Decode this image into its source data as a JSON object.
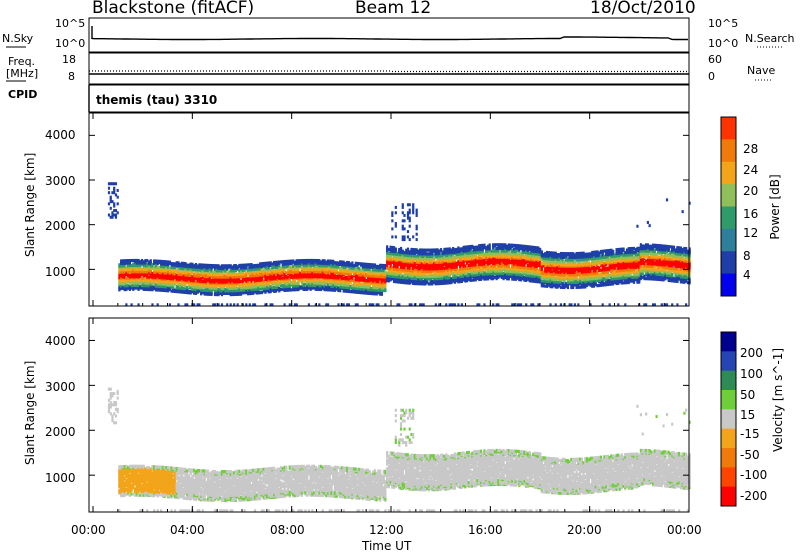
{
  "header": {
    "title": "Blackstone (fitACF)",
    "beam": "Beam 12",
    "date": "18/Oct/2010"
  },
  "strip_labels": {
    "nsky": "N.Sky",
    "nsearch": "N.Search",
    "freq": "Freq.",
    "freq_unit": "[MHz]",
    "cpid": "CPID",
    "nave": "Nave",
    "cpid_text": "themis (tau) 3310",
    "nsky_ticks": [
      "10^5",
      "10^0"
    ],
    "nsearch_ticks": [
      "10^5",
      "10^0"
    ],
    "freq_ticks": [
      "18",
      "8"
    ],
    "nave_ticks": [
      "60",
      "0"
    ]
  },
  "colors": {
    "power_scale": [
      "#0000ee",
      "#1f3fa8",
      "#2e7f9a",
      "#2f9a6a",
      "#8fbf5a",
      "#f2a51a",
      "#f07a0a",
      "#ff3300",
      "#ff0000"
    ],
    "velocity_scale": [
      "#00008f",
      "#2545b5",
      "#2e8b57",
      "#6fcf3a",
      "#c8c8c8",
      "#f2a51a",
      "#f07a0a",
      "#ff4400",
      "#ff0000"
    ]
  },
  "chart_data": [
    {
      "type": "heatmap",
      "panel": "power",
      "ylabel": "Slant Range [km]",
      "xlabel": "Time UT",
      "x_ticks": [
        "00:00",
        "04:00",
        "08:00",
        "12:00",
        "16:00",
        "20:00",
        "00:00"
      ],
      "y_ticks": [
        "1000",
        "2000",
        "3000",
        "4000"
      ],
      "x_range_hours": [
        0,
        24
      ],
      "y_range_km": [
        180,
        4500
      ],
      "colorbar_label": "Power [dB]",
      "colorbar_ticks": [
        "4",
        "8",
        "12",
        "16",
        "20",
        "24",
        "28"
      ],
      "features": [
        {
          "t_start": 0.6,
          "t_end": 1.0,
          "range_km": [
            2200,
            3000
          ],
          "level": "low"
        },
        {
          "t_start": 1.0,
          "t_end": 11.8,
          "range_km": [
            650,
            1300
          ],
          "level": "high core, lower edges"
        },
        {
          "t_start": 11.8,
          "t_end": 24.0,
          "range_km": [
            900,
            1700
          ],
          "level": "high core, lower edges"
        },
        {
          "t_start": 0.0,
          "t_end": 24.0,
          "range_km": [
            200,
            280
          ],
          "level": "ground scatter band"
        }
      ]
    },
    {
      "type": "heatmap",
      "panel": "velocity",
      "ylabel": "Slant Range [km]",
      "xlabel": "Time UT",
      "x_ticks": [
        "00:00",
        "04:00",
        "08:00",
        "12:00",
        "16:00",
        "20:00",
        "00:00"
      ],
      "y_ticks": [
        "1000",
        "2000",
        "3000",
        "4000"
      ],
      "x_range_hours": [
        0,
        24
      ],
      "y_range_km": [
        180,
        4500
      ],
      "colorbar_label": "Velocity [m s^-1]",
      "colorbar_ticks": [
        "200",
        "100",
        "50",
        "15",
        "-15",
        "-50",
        "-100",
        "-200"
      ],
      "features": [
        {
          "t_start": 1.0,
          "t_end": 3.3,
          "range_km": [
            650,
            1300
          ],
          "velocity": "-50 (orange)"
        },
        {
          "t_start": 3.3,
          "t_end": 11.8,
          "range_km": [
            650,
            1300
          ],
          "velocity": "near zero (grey) with green patches"
        },
        {
          "t_start": 11.8,
          "t_end": 24.0,
          "range_km": [
            900,
            1700
          ],
          "velocity": "near zero (grey)"
        }
      ]
    }
  ]
}
